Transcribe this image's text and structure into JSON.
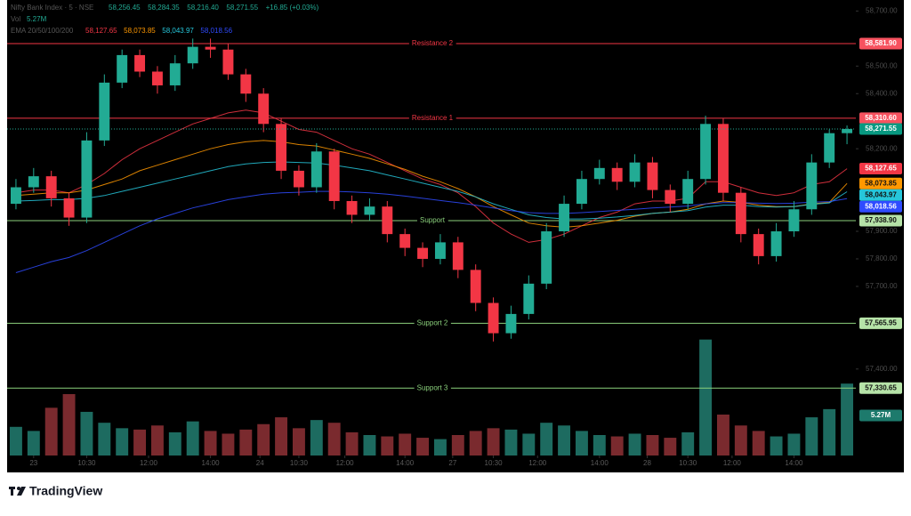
{
  "chart_data": {
    "type": "candlestick",
    "title": "Nifty Bank Index · 5 · NSE",
    "ohlc_labels": {
      "open": "58,256.45",
      "high": "58,284.35",
      "low": "58,216.40",
      "close": "58,271.55",
      "change": "+16.85 (+0.03%)"
    },
    "open": [
      58000,
      58060,
      58100,
      58020,
      57950,
      58230,
      58440,
      58540,
      58480,
      58430,
      58510,
      58570,
      58560,
      58470,
      58400,
      58290,
      58120,
      58060,
      58190,
      58010,
      57960,
      57990,
      57890,
      57840,
      57800,
      57860,
      57760,
      57640,
      57530,
      57600,
      57710,
      57900,
      58000,
      58090,
      58130,
      58080,
      58150,
      58050,
      58000,
      58090,
      58290,
      58040,
      57890,
      57810,
      57900,
      57980,
      58150,
      58256.45
    ],
    "high": [
      58090,
      58130,
      58120,
      58040,
      58260,
      58470,
      58560,
      58560,
      58500,
      58540,
      58600,
      58600,
      58580,
      58490,
      58420,
      58310,
      58140,
      58220,
      58200,
      58030,
      58020,
      58010,
      57910,
      57860,
      57890,
      57880,
      57780,
      57660,
      57630,
      57740,
      57930,
      58030,
      58120,
      58160,
      58150,
      58180,
      58170,
      58070,
      58120,
      58320,
      58310,
      58060,
      57910,
      57930,
      58010,
      58180,
      58270,
      58284.35
    ],
    "low": [
      57980,
      58040,
      57990,
      57920,
      57930,
      58210,
      58420,
      58460,
      58400,
      58410,
      58490,
      58530,
      58450,
      58370,
      58260,
      58090,
      58030,
      58040,
      57980,
      57930,
      57940,
      57860,
      57810,
      57770,
      57780,
      57730,
      57610,
      57500,
      57510,
      57580,
      57690,
      57880,
      57980,
      58070,
      58050,
      58060,
      58020,
      57970,
      57980,
      58070,
      58010,
      57860,
      57780,
      57790,
      57880,
      57960,
      58130,
      58216.4
    ],
    "close": [
      58060,
      58100,
      58020,
      57950,
      58230,
      58440,
      58540,
      58480,
      58430,
      58510,
      58570,
      58560,
      58470,
      58400,
      58290,
      58120,
      58060,
      58190,
      58010,
      57960,
      57990,
      57890,
      57840,
      57800,
      57860,
      57760,
      57640,
      57530,
      57600,
      57710,
      57900,
      58000,
      58090,
      58130,
      58080,
      58150,
      58050,
      58000,
      58090,
      58290,
      58040,
      57890,
      57810,
      57900,
      57980,
      58150,
      58256.45,
      58271.55
    ],
    "up_color": "#22ab94",
    "down_color": "#f23645",
    "volume_title": "Vol",
    "volume": {
      "values": [
        2.1,
        1.8,
        3.5,
        4.5,
        3.2,
        2.4,
        2.0,
        1.9,
        2.2,
        1.7,
        2.5,
        1.8,
        1.6,
        1.9,
        2.3,
        2.8,
        2.0,
        2.6,
        2.4,
        1.7,
        1.5,
        1.4,
        1.6,
        1.3,
        1.2,
        1.5,
        1.8,
        2.0,
        1.9,
        1.6,
        2.4,
        2.2,
        1.8,
        1.5,
        1.4,
        1.6,
        1.5,
        1.3,
        1.7,
        8.5,
        3.0,
        2.2,
        1.8,
        1.4,
        1.6,
        2.8,
        3.4,
        5.27
      ],
      "value_labels": [
        null,
        null,
        null,
        null,
        null,
        null,
        null,
        null,
        null,
        null,
        null,
        null,
        null,
        null,
        null,
        null,
        null,
        null,
        null,
        null,
        null,
        null,
        null,
        null,
        null,
        null,
        null,
        null,
        null,
        null,
        null,
        null,
        null,
        null,
        null,
        null,
        null,
        null,
        null,
        null,
        null,
        null,
        null,
        null,
        null,
        null,
        null,
        "5.27M"
      ],
      "ylim": [
        0,
        9
      ],
      "up_color": "#1d6b60",
      "down_color": "#7a2a2e"
    },
    "ema_title": "EMA 20/50/100/200",
    "ema": [
      {
        "color": "#f23645",
        "last_label": "58,127.65",
        "values": [
          58040,
          58050,
          58050,
          58040,
          58070,
          58110,
          58160,
          58200,
          58230,
          58260,
          58290,
          58310,
          58330,
          58340,
          58330,
          58300,
          58270,
          58260,
          58230,
          58200,
          58180,
          58150,
          58120,
          58090,
          58070,
          58040,
          57990,
          57930,
          57890,
          57860,
          57870,
          57890,
          57920,
          57950,
          57970,
          58000,
          58010,
          58010,
          58020,
          58080,
          58080,
          58060,
          58040,
          58030,
          58040,
          58070,
          58080,
          58127.65
        ]
      },
      {
        "color": "#ff9800",
        "last_label": "58,073.85",
        "values": [
          58030,
          58035,
          58040,
          58040,
          58050,
          58070,
          58090,
          58120,
          58140,
          58160,
          58180,
          58200,
          58215,
          58225,
          58230,
          58225,
          58215,
          58210,
          58195,
          58180,
          58165,
          58145,
          58125,
          58100,
          58080,
          58055,
          58025,
          57990,
          57960,
          57930,
          57920,
          57915,
          57920,
          57930,
          57940,
          57955,
          57965,
          57970,
          57980,
          58000,
          58010,
          58005,
          57995,
          57990,
          57990,
          58000,
          58005,
          58073.85
        ]
      },
      {
        "color": "#26c6da",
        "last_label": "58,043.97",
        "values": [
          58010,
          58012,
          58015,
          58015,
          58020,
          58030,
          58045,
          58060,
          58075,
          58090,
          58105,
          58120,
          58135,
          58145,
          58150,
          58152,
          58150,
          58148,
          58140,
          58130,
          58120,
          58105,
          58090,
          58075,
          58060,
          58045,
          58025,
          58000,
          57980,
          57960,
          57950,
          57945,
          57945,
          57948,
          57952,
          57958,
          57965,
          57970,
          57975,
          57988,
          57995,
          57995,
          57990,
          57988,
          57990,
          57998,
          58003,
          58043.97
        ]
      },
      {
        "color": "#2f4bff",
        "last_label": "58,018.56",
        "values": [
          57750,
          57770,
          57790,
          57805,
          57830,
          57860,
          57890,
          57920,
          57945,
          57965,
          57985,
          58000,
          58015,
          58025,
          58035,
          58040,
          58042,
          58045,
          58045,
          58043,
          58040,
          58035,
          58028,
          58020,
          58012,
          58004,
          57995,
          57985,
          57975,
          57968,
          57965,
          57965,
          57968,
          57972,
          57976,
          57980,
          57985,
          57988,
          57992,
          58000,
          58004,
          58004,
          58002,
          58001,
          58002,
          58006,
          58008,
          58018.56
        ]
      }
    ],
    "levels": [
      {
        "name": "Resistance 2",
        "value": 58581.9,
        "label": "58,581.90",
        "color": "#f23645"
      },
      {
        "name": "Resistance 1",
        "value": 58310.6,
        "label": "58,310.60",
        "color": "#f23645"
      },
      {
        "name": "Support",
        "value": 57938.9,
        "label": "57,938.90",
        "color": "#8bd17c"
      },
      {
        "name": "Support 2",
        "value": 57565.95,
        "label": "57,565.95",
        "color": "#8bd17c"
      },
      {
        "name": "Support 3",
        "value": 57330.65,
        "label": "57,330.65",
        "color": "#8bd17c"
      }
    ],
    "ylim": [
      57086,
      58740
    ],
    "yticks": [
      {
        "value": 58700,
        "label": "58,700.00"
      },
      {
        "value": 58500,
        "label": "58,500.00"
      },
      {
        "value": 58400,
        "label": "58,400.00"
      },
      {
        "value": 58200,
        "label": "58,200.00"
      },
      {
        "value": 57900,
        "label": "57,900.00"
      },
      {
        "value": 57800,
        "label": "57,800.00"
      },
      {
        "value": 57700,
        "label": "57,700.00"
      },
      {
        "value": 57400,
        "label": "57,400.00"
      }
    ],
    "xticks": [
      {
        "value": 1,
        "label": "23"
      },
      {
        "value": 4,
        "label": "10:30"
      },
      {
        "value": 7.5,
        "label": "12:00"
      },
      {
        "value": 11,
        "label": "14:00"
      },
      {
        "value": 13.8,
        "label": "24"
      },
      {
        "value": 16,
        "label": "10:30"
      },
      {
        "value": 18.6,
        "label": "12:00"
      },
      {
        "value": 22,
        "label": "14:00"
      },
      {
        "value": 24.7,
        "label": "27"
      },
      {
        "value": 27,
        "label": "10:30"
      },
      {
        "value": 29.5,
        "label": "12:00"
      },
      {
        "value": 33,
        "label": "14:00"
      },
      {
        "value": 35.7,
        "label": "28"
      },
      {
        "value": 38,
        "label": "10:30"
      },
      {
        "value": 40.5,
        "label": "12:00"
      },
      {
        "value": 44,
        "label": "14:00"
      }
    ]
  },
  "brand": "TradingView"
}
